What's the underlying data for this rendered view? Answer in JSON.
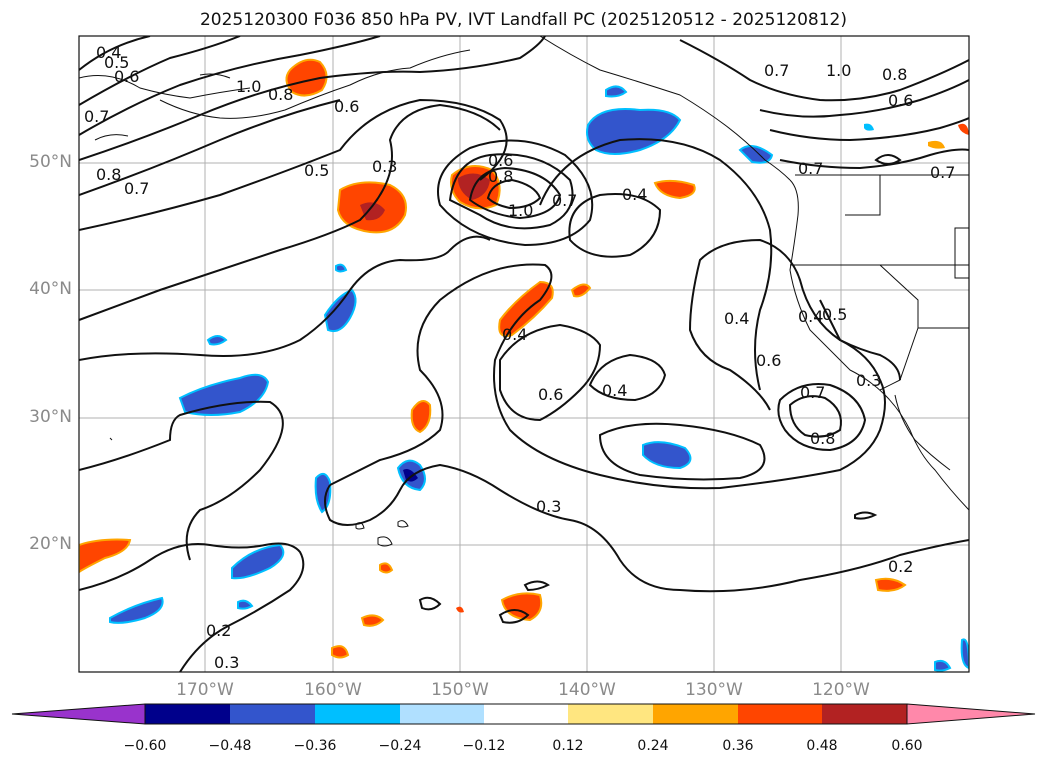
{
  "title": "2025120300 F036 850 hPa PV, IVT Landfall PC (2025120512 - 2025120812)",
  "latitude_labels": [
    "50°N",
    "40°N",
    "30°N",
    "20°N"
  ],
  "longitude_labels": [
    "170°W",
    "160°W",
    "150°W",
    "140°W",
    "130°W",
    "120°W"
  ],
  "colorbar": {
    "ticks": [
      "−0.60",
      "−0.48",
      "−0.36",
      "−0.24",
      "−0.12",
      "0.12",
      "0.24",
      "0.36",
      "0.48",
      "0.60"
    ],
    "colors": [
      "#9933cc",
      "#00008b",
      "#3355cc",
      "#00bfff",
      "#b0e0ff",
      "#ffffff",
      "#ffe680",
      "#ffa500",
      "#ff4500",
      "#b22222",
      "#ff88aa"
    ]
  },
  "contour_labels": [
    "0.4",
    "0.5",
    "0.6",
    "1.0",
    "0.8",
    "0.7",
    "0.8",
    "0.7",
    "0.5",
    "0.3",
    "0.6",
    "0.8",
    "1.0",
    "0.7",
    "0.4",
    "0.6",
    "0.4",
    "0.4",
    "0.6",
    "0.6",
    "0.4",
    "0.7",
    "0.8",
    "0.5",
    "0.4",
    "0.3",
    "0.3",
    "0.2",
    "0.2",
    "0.3",
    "0.7",
    "1.0",
    "0.8",
    "0.6",
    "0.7",
    "0.7"
  ]
}
